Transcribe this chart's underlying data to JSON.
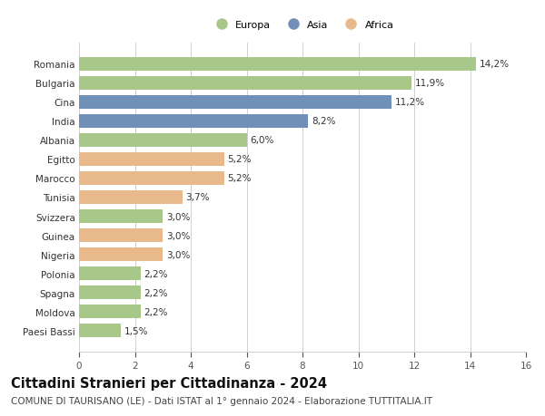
{
  "countries": [
    "Romania",
    "Bulgaria",
    "Cina",
    "India",
    "Albania",
    "Egitto",
    "Marocco",
    "Tunisia",
    "Svizzera",
    "Guinea",
    "Nigeria",
    "Polonia",
    "Spagna",
    "Moldova",
    "Paesi Bassi"
  ],
  "values": [
    14.2,
    11.9,
    11.2,
    8.2,
    6.0,
    5.2,
    5.2,
    3.7,
    3.0,
    3.0,
    3.0,
    2.2,
    2.2,
    2.2,
    1.5
  ],
  "continents": [
    "Europa",
    "Europa",
    "Asia",
    "Asia",
    "Europa",
    "Africa",
    "Africa",
    "Africa",
    "Europa",
    "Africa",
    "Africa",
    "Europa",
    "Europa",
    "Europa",
    "Europa"
  ],
  "colors": {
    "Europa": "#a8c88a",
    "Asia": "#7090b8",
    "Africa": "#e8b98a"
  },
  "legend_order": [
    "Europa",
    "Asia",
    "Africa"
  ],
  "title": "Cittadini Stranieri per Cittadinanza - 2024",
  "subtitle": "COMUNE DI TAURISANO (LE) - Dati ISTAT al 1° gennaio 2024 - Elaborazione TUTTITALIA.IT",
  "xlim": [
    0,
    16
  ],
  "xticks": [
    0,
    2,
    4,
    6,
    8,
    10,
    12,
    14,
    16
  ],
  "background_color": "#ffffff",
  "grid_color": "#d0d0d0",
  "bar_height": 0.72,
  "label_fontsize": 7.5,
  "tick_fontsize": 7.5,
  "title_fontsize": 10.5,
  "subtitle_fontsize": 7.5
}
